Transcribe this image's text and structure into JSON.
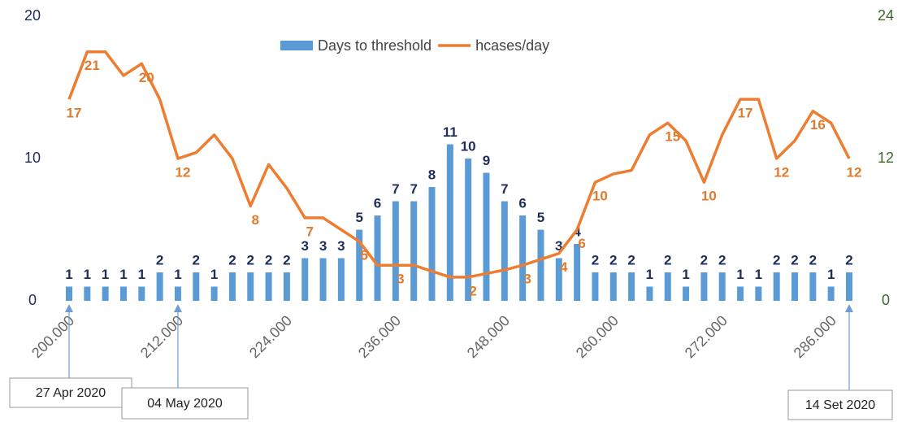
{
  "chart_data": {
    "type": "bar_line",
    "categories": [
      "200.000",
      null,
      null,
      null,
      null,
      null,
      "212.000",
      null,
      null,
      null,
      null,
      null,
      "224.000",
      null,
      null,
      null,
      null,
      null,
      "236.000",
      null,
      null,
      null,
      null,
      null,
      "248.000",
      null,
      null,
      null,
      null,
      null,
      "260.000",
      null,
      null,
      null,
      null,
      null,
      "272.000",
      null,
      null,
      null,
      null,
      null,
      "286.000",
      null
    ],
    "series": [
      {
        "name": "Days to threshold",
        "type": "bar",
        "color": "#5b9bd5",
        "label_color": "#1f2d5a",
        "values": [
          1,
          1,
          1,
          1,
          1,
          2,
          1,
          2,
          1,
          2,
          2,
          2,
          2,
          3,
          3,
          3,
          5,
          6,
          7,
          7,
          8,
          11,
          10,
          9,
          7,
          6,
          5,
          3,
          4,
          2,
          2,
          2,
          1,
          2,
          1,
          2,
          2,
          1,
          1,
          2,
          2,
          2,
          1,
          2
        ]
      },
      {
        "name": "hcases/day",
        "type": "line",
        "axis": "y2",
        "color": "#ed7d31",
        "label_color": "#e07b2e",
        "values": [
          17,
          21,
          21,
          19,
          20,
          17,
          12,
          12.5,
          14,
          12,
          8,
          11.5,
          9.5,
          7,
          7,
          6,
          5,
          3,
          3,
          3,
          2.5,
          2,
          2,
          2.3,
          2.6,
          3,
          3.5,
          4,
          6,
          10,
          10.7,
          11,
          14,
          15,
          13.5,
          10,
          14,
          17,
          17,
          12,
          13.5,
          16,
          15,
          12
        ],
        "value_labels": [
          "17",
          "21",
          null,
          null,
          "20",
          null,
          "12",
          null,
          null,
          null,
          "8",
          null,
          null,
          "7",
          null,
          null,
          "5",
          null,
          "3",
          null,
          null,
          null,
          "2",
          null,
          null,
          "3",
          null,
          "4",
          "6",
          "10",
          null,
          null,
          null,
          "15",
          null,
          "10",
          null,
          "17",
          null,
          "12",
          null,
          "16",
          null,
          "12"
        ]
      }
    ],
    "ylim": [
      0,
      20
    ],
    "yticks": [
      0,
      10,
      20
    ],
    "ytick_color": "#1f2d5a",
    "y2lim": [
      0,
      24
    ],
    "y2ticks": [
      0,
      12,
      24
    ],
    "y2tick_color": "#3a6b2a",
    "grid": false,
    "legend": "top",
    "annotations": [
      {
        "text": "27 Apr 2020"
      },
      {
        "text": "04 May 2020"
      },
      {
        "text": "14 Set 2020"
      }
    ]
  }
}
